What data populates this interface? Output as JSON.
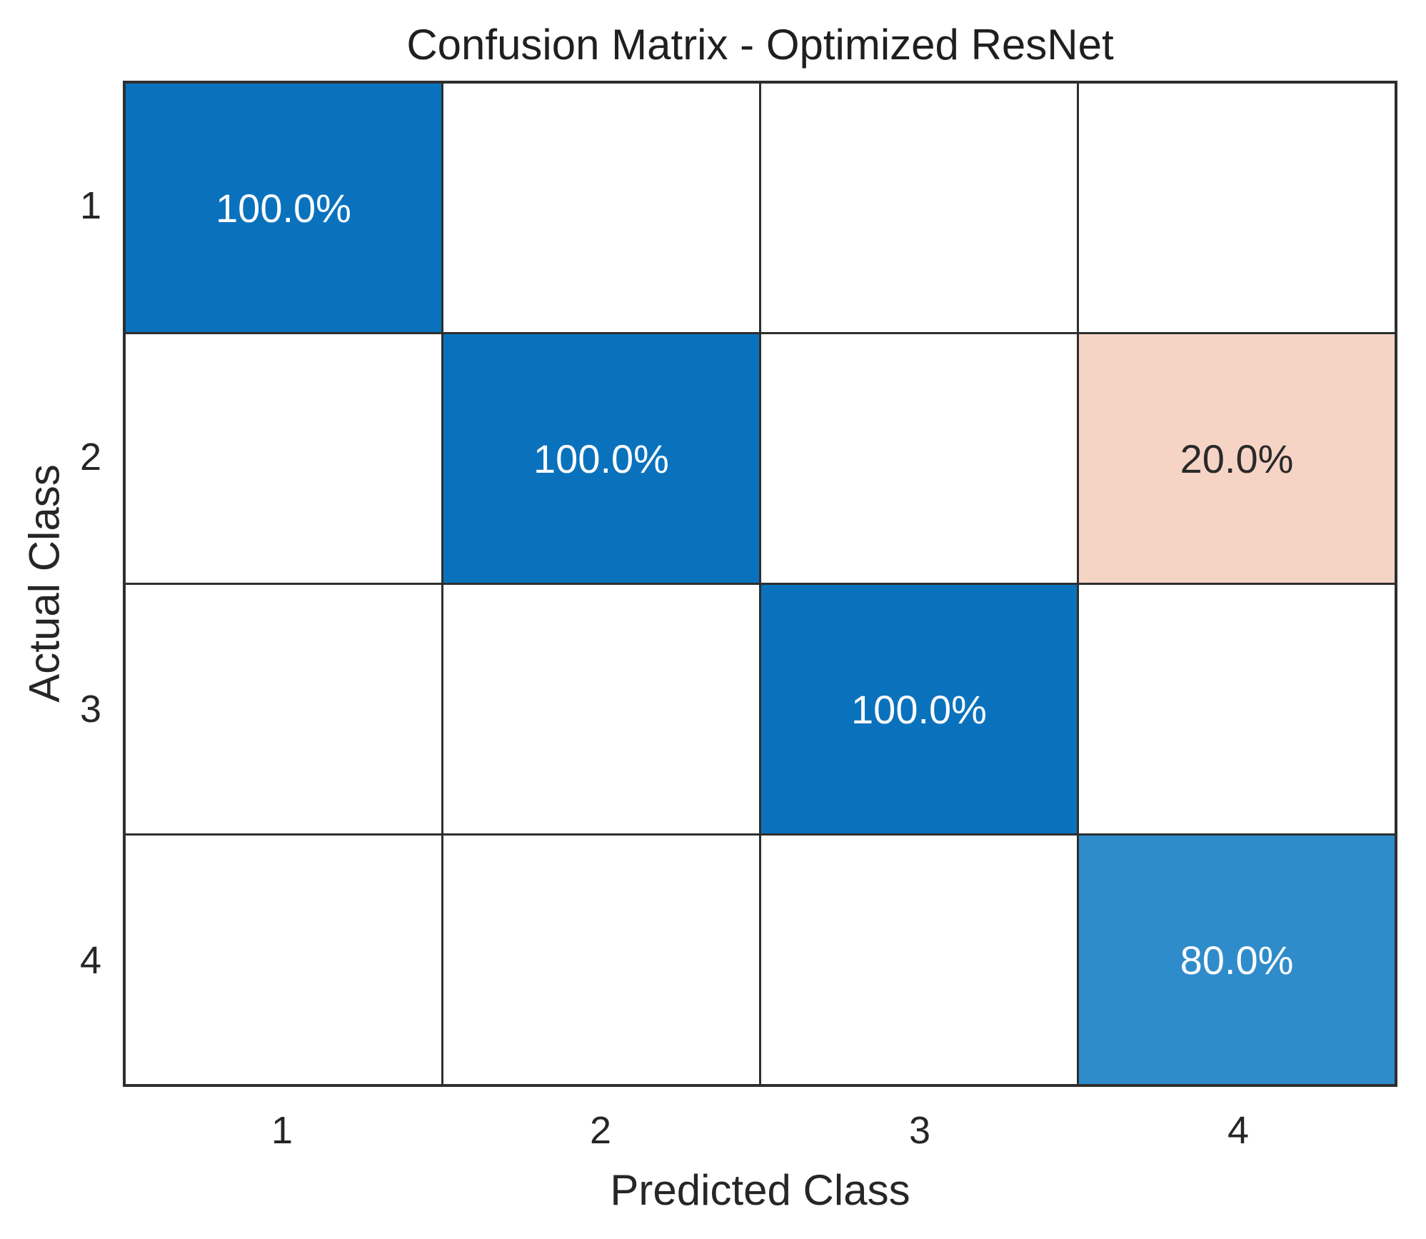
{
  "chart_data": {
    "type": "heatmap",
    "title": "Confusion Matrix - Optimized ResNet",
    "xlabel": "Predicted Class",
    "ylabel": "Actual Class",
    "rows": 4,
    "cols": 4,
    "x_tick_labels": [
      "1",
      "2",
      "3",
      "4"
    ],
    "y_tick_labels": [
      "1",
      "2",
      "3",
      "4"
    ],
    "matrix_percent": [
      [
        100.0,
        0,
        0,
        0
      ],
      [
        0,
        100.0,
        0,
        20.0
      ],
      [
        0,
        0,
        100.0,
        0
      ],
      [
        0,
        0,
        0,
        80.0
      ]
    ],
    "cells": [
      {
        "row": 1,
        "col": 1,
        "value_percent": 100.0,
        "label": "100.0%",
        "bg": "#0a72bd",
        "fg": "#fcfdfe"
      },
      {
        "row": 2,
        "col": 2,
        "value_percent": 100.0,
        "label": "100.0%",
        "bg": "#0a72bd",
        "fg": "#fcfdfe"
      },
      {
        "row": 2,
        "col": 4,
        "value_percent": 20.0,
        "label": "20.0%",
        "bg": "#f6d4c5",
        "fg": "#2a2a2a"
      },
      {
        "row": 3,
        "col": 3,
        "value_percent": 100.0,
        "label": "100.0%",
        "bg": "#0a72bd",
        "fg": "#fcfdfe"
      },
      {
        "row": 4,
        "col": 4,
        "value_percent": 80.0,
        "label": "80.0%",
        "bg": "#2f8ccb",
        "fg": "#fcfdfe"
      }
    ],
    "colors": {
      "diagonal_full": "#0a72bd",
      "diagonal_light": "#2f8ccb",
      "off_diagonal": "#f6d4c5",
      "empty_cell": "#ffffff",
      "grid_line": "#2e2e2e",
      "axis_text": "#262626"
    },
    "layout": {
      "grid_on": true,
      "legend": "none",
      "axis_range_note": "4x4 category grid, rows = actual class 1-4 top to bottom, cols = predicted class 1-4 left to right"
    }
  }
}
